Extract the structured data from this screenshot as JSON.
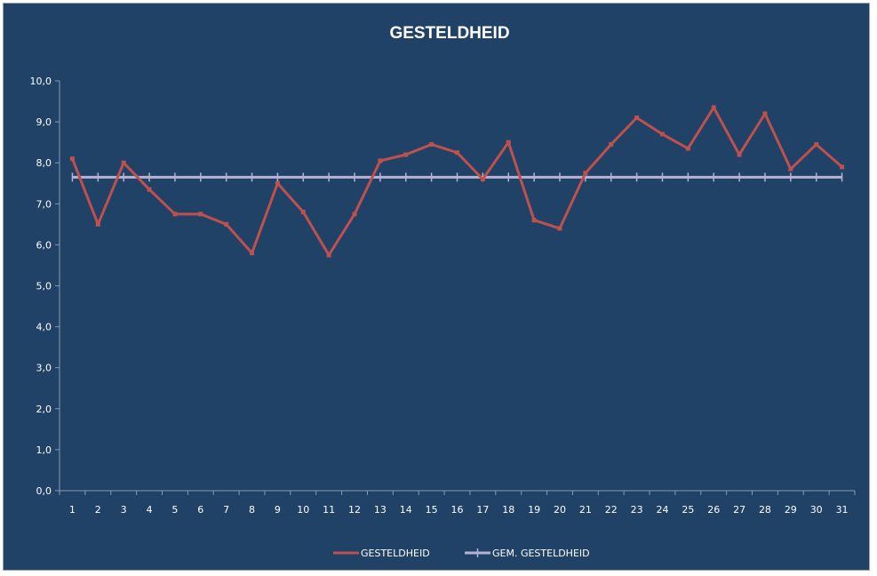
{
  "chart_data": {
    "type": "line",
    "title": "GESTELDHEID",
    "xlabel": "",
    "ylabel": "",
    "categories": [
      "1",
      "2",
      "3",
      "4",
      "5",
      "6",
      "7",
      "8",
      "9",
      "10",
      "11",
      "12",
      "13",
      "14",
      "15",
      "16",
      "17",
      "18",
      "19",
      "20",
      "21",
      "22",
      "23",
      "24",
      "25",
      "26",
      "27",
      "28",
      "29",
      "30",
      "31"
    ],
    "ylim": [
      0,
      10
    ],
    "yticks": [
      "0,0",
      "1,0",
      "2,0",
      "3,0",
      "4,0",
      "5,0",
      "6,0",
      "7,0",
      "8,0",
      "9,0",
      "10,0"
    ],
    "grid": false,
    "legend_position": "bottom",
    "series": [
      {
        "name": "GESTELDHEID",
        "color": "#c0504d",
        "values": [
          8.1,
          6.5,
          8.0,
          7.35,
          6.75,
          6.75,
          6.5,
          5.8,
          7.5,
          6.8,
          5.75,
          6.75,
          8.05,
          8.2,
          8.45,
          8.25,
          7.6,
          8.5,
          6.6,
          6.4,
          7.75,
          8.45,
          9.1,
          8.7,
          8.35,
          9.35,
          8.2,
          9.2,
          7.85,
          8.45,
          7.9
        ]
      },
      {
        "name": "GEM. GESTELDHEID",
        "color": "#b7b2d4",
        "values": [
          7.65,
          7.65,
          7.65,
          7.65,
          7.65,
          7.65,
          7.65,
          7.65,
          7.65,
          7.65,
          7.65,
          7.65,
          7.65,
          7.65,
          7.65,
          7.65,
          7.65,
          7.65,
          7.65,
          7.65,
          7.65,
          7.65,
          7.65,
          7.65,
          7.65,
          7.65,
          7.65,
          7.65,
          7.65,
          7.65,
          7.65
        ]
      }
    ]
  }
}
